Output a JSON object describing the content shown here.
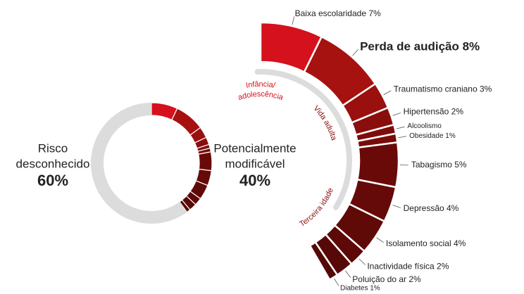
{
  "chart_data": {
    "type": "donut-breakdown",
    "donut": {
      "series": [
        {
          "name_lines": [
            "Potencialmente",
            "modificável"
          ],
          "value": 40,
          "value_label": "40%",
          "color": "#8a0e0c"
        },
        {
          "name_lines": [
            "Risco",
            "desconhecido"
          ],
          "value": 60,
          "value_label": "60%",
          "color": "#dcdcdc"
        }
      ]
    },
    "categories": [
      "Baixa escolaridade 7%",
      "Perda de audição 8%",
      "Traumatismo craniano 3%",
      "Hipertensão 2%",
      "Alcoolismo",
      "Obesidade 1%",
      "Tabagismo 5%",
      "Depressão 4%",
      "Isolamento social 4%",
      "Inactividade física 2%",
      "Poluição do ar 2%",
      "Diabetes 1%"
    ],
    "values": [
      7,
      8,
      3,
      2,
      1,
      1,
      5,
      4,
      4,
      2,
      2,
      1
    ],
    "colors": [
      "#d4111c",
      "#a6120f",
      "#9a100e",
      "#8a0e0c",
      "#7e0c0b",
      "#780c0a",
      "#6a0a08",
      "#650a08",
      "#600a08",
      "#5c0907",
      "#580907",
      "#540907"
    ],
    "stages": [
      {
        "lines": [
          "Infância/",
          "adolescência"
        ],
        "color": "#d4111c"
      },
      {
        "lines": [
          "Vida adulta"
        ],
        "color": "#8a0e0c"
      },
      {
        "lines": [
          "Terceira idade"
        ],
        "color": "#8a0e0c"
      }
    ]
  }
}
